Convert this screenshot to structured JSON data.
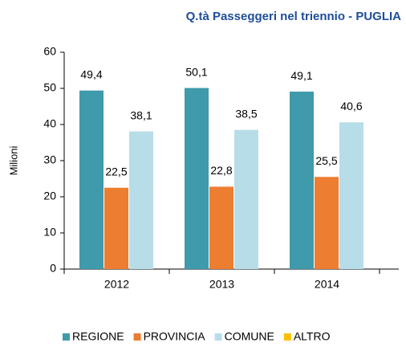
{
  "chart_data": {
    "type": "bar",
    "title": "Q.tà Passeggeri nel triennio - PUGLIA",
    "y_label": "Milioni",
    "categories": [
      "2012",
      "2013",
      "2014"
    ],
    "series": [
      {
        "name": "REGIONE",
        "color": "#3f9aab",
        "values": [
          49.4,
          50.1,
          49.1
        ],
        "value_labels": [
          "49,4",
          "50,1",
          "49,1"
        ]
      },
      {
        "name": "PROVINCIA",
        "color": "#ed7d31",
        "values": [
          22.5,
          22.8,
          25.5
        ],
        "value_labels": [
          "22,5",
          "22,8",
          "25,5"
        ]
      },
      {
        "name": "COMUNE",
        "color": "#b7dde8",
        "values": [
          38.1,
          38.5,
          40.6
        ],
        "value_labels": [
          "38,1",
          "38,5",
          "40,6"
        ]
      },
      {
        "name": "ALTRO",
        "color": "#ffc000",
        "values": [
          null,
          null,
          null
        ]
      }
    ],
    "ylim": [
      0,
      60
    ],
    "yticks": [
      0,
      10,
      20,
      30,
      40,
      50,
      60
    ],
    "grid": false,
    "legend": "bottom"
  }
}
